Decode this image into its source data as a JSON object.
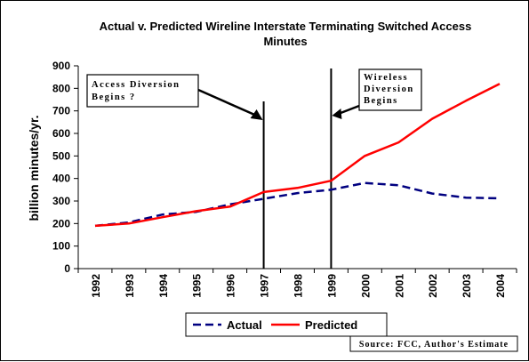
{
  "chart_data": {
    "type": "line",
    "title_line1": "Actual v. Predicted Wireline Interstate Terminating Switched Access",
    "title_line2": "Minutes",
    "ylabel": "billion minutes/yr.",
    "xlabel": "",
    "ylim": [
      0,
      900
    ],
    "yticks": [
      0,
      100,
      200,
      300,
      400,
      500,
      600,
      700,
      800,
      900
    ],
    "x": [
      "1992",
      "1993",
      "1994",
      "1995",
      "1996",
      "1997",
      "1998",
      "1999",
      "2000",
      "2001",
      "2002",
      "2003",
      "2004"
    ],
    "series": [
      {
        "name": "Actual",
        "color": "#000080",
        "dash": true,
        "values": [
          190,
          205,
          240,
          252,
          285,
          310,
          335,
          350,
          380,
          370,
          333,
          315,
          312
        ]
      },
      {
        "name": "Predicted",
        "color": "#ff0000",
        "dash": false,
        "values": [
          190,
          200,
          228,
          255,
          275,
          340,
          358,
          390,
          500,
          560,
          665,
          745,
          820
        ]
      }
    ],
    "legend_position": "bottom",
    "vertical_markers": [
      {
        "x": "1997",
        "label_lines": [
          "Access Diversion",
          "Begins ?"
        ]
      },
      {
        "x": "1999",
        "label_lines": [
          "Wireless",
          "Diversion",
          "Begins"
        ]
      }
    ],
    "source": "Source: FCC, Author's Estimate"
  }
}
